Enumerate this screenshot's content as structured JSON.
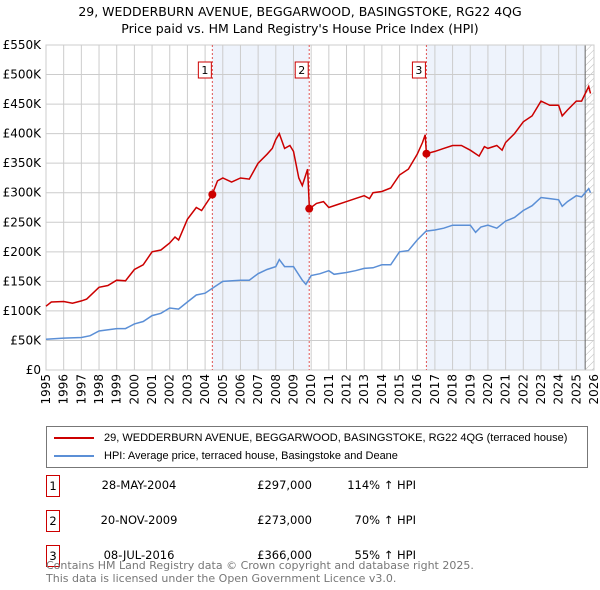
{
  "chart_data": {
    "type": "line",
    "title": "29, WEDDERBURN AVENUE, BEGGARWOOD, BASINGSTOKE, RG22 4QG",
    "subtitle": "Price paid vs. HM Land Registry's House Price Index (HPI)",
    "xlim": [
      1995,
      2026
    ],
    "ylim": [
      0,
      550000
    ],
    "y_ticks": [
      0,
      50000,
      100000,
      150000,
      200000,
      250000,
      300000,
      350000,
      400000,
      450000,
      500000,
      550000
    ],
    "y_tick_labels": [
      "£0",
      "£50K",
      "£100K",
      "£150K",
      "£200K",
      "£250K",
      "£300K",
      "£350K",
      "£400K",
      "£450K",
      "£500K",
      "£550K"
    ],
    "x_ticks": [
      1995,
      1996,
      1997,
      1998,
      1999,
      2000,
      2001,
      2002,
      2003,
      2004,
      2005,
      2006,
      2007,
      2008,
      2009,
      2010,
      2011,
      2012,
      2013,
      2014,
      2015,
      2016,
      2017,
      2018,
      2019,
      2020,
      2021,
      2022,
      2023,
      2024,
      2025,
      2026
    ],
    "x_tick_labels": [
      "1995",
      "1996",
      "1997",
      "1998",
      "1999",
      "2000",
      "2001",
      "2002",
      "2003",
      "2004",
      "2005",
      "2006",
      "2007",
      "2008",
      "2009",
      "2010",
      "2011",
      "2012",
      "2013",
      "2014",
      "2015",
      "2016",
      "2017",
      "2018",
      "2019",
      "2020",
      "2021",
      "2022",
      "2023",
      "2024",
      "2025",
      "2026"
    ],
    "grid": true,
    "series": [
      {
        "name": "29, WEDDERBURN AVENUE, BEGGARWOOD, BASINGSTOKE, RG22 4QG (terraced house)",
        "color": "#cc0000",
        "x": [
          1995,
          1995.3,
          1996,
          1996.5,
          1997,
          1997.3,
          1998,
          1998.5,
          1999,
          1999.5,
          2000,
          2000.5,
          2001,
          2001.5,
          2002,
          2002.3,
          2002.5,
          2003,
          2003.5,
          2003.8,
          2004.4,
          2004.7,
          2005,
          2005.5,
          2006,
          2006.5,
          2007,
          2007.5,
          2007.8,
          2008,
          2008.2,
          2008.5,
          2008.8,
          2009,
          2009.3,
          2009.5,
          2009.8,
          2009.9,
          2010.3,
          2010.7,
          2011,
          2011.5,
          2012,
          2012.5,
          2013,
          2013.3,
          2013.5,
          2014,
          2014.5,
          2015,
          2015.5,
          2016,
          2016.3,
          2016.45,
          2016.52,
          2017,
          2017.5,
          2018,
          2018.5,
          2019,
          2019.5,
          2019.8,
          2020,
          2020.5,
          2020.8,
          2021,
          2021.5,
          2022,
          2022.5,
          2023,
          2023.5,
          2024,
          2024.2,
          2024.5,
          2025,
          2025.3,
          2025.7,
          2025.8
        ],
        "y": [
          108,
          115,
          116,
          113,
          117,
          120,
          140,
          143,
          152,
          151,
          170,
          178,
          200,
          203,
          215,
          225,
          220,
          255,
          275,
          270,
          297,
          320,
          325,
          318,
          325,
          323,
          350,
          365,
          375,
          390,
          400,
          375,
          380,
          370,
          325,
          312,
          340,
          273,
          282,
          285,
          275,
          280,
          285,
          290,
          295,
          290,
          300,
          302,
          308,
          330,
          340,
          365,
          385,
          398,
          366,
          370,
          375,
          380,
          380,
          372,
          362,
          378,
          375,
          380,
          372,
          385,
          400,
          420,
          430,
          455,
          448,
          448,
          430,
          440,
          455,
          455,
          480,
          468
        ]
      },
      {
        "name": "HPI: Average price, terraced house, Basingstoke and Deane",
        "color": "#5b8fd6",
        "x": [
          1995,
          1996,
          1997,
          1997.5,
          1998,
          1999,
          1999.5,
          2000,
          2000.5,
          2001,
          2001.5,
          2002,
          2002.5,
          2003,
          2003.5,
          2004,
          2004.5,
          2005,
          2006,
          2006.5,
          2007,
          2007.5,
          2008,
          2008.2,
          2008.5,
          2009,
          2009.5,
          2009.7,
          2010,
          2010.5,
          2011,
          2011.3,
          2012,
          2012.5,
          2013,
          2013.5,
          2014,
          2014.5,
          2015,
          2015.5,
          2016,
          2016.5,
          2017,
          2017.5,
          2018,
          2019,
          2019.3,
          2019.6,
          2020,
          2020.5,
          2021,
          2021.5,
          2022,
          2022.5,
          2023,
          2023.5,
          2024,
          2024.2,
          2024.5,
          2025,
          2025.3,
          2025.7,
          2025.8
        ],
        "y": [
          52,
          54,
          55,
          58,
          66,
          70,
          70,
          78,
          82,
          92,
          96,
          105,
          103,
          115,
          127,
          130,
          140,
          150,
          152,
          152,
          163,
          170,
          175,
          187,
          175,
          175,
          152,
          145,
          160,
          163,
          168,
          162,
          165,
          168,
          172,
          173,
          178,
          178,
          200,
          202,
          220,
          235,
          237,
          240,
          245,
          245,
          233,
          242,
          245,
          240,
          252,
          258,
          270,
          278,
          292,
          290,
          288,
          277,
          285,
          295,
          293,
          307,
          300
        ]
      }
    ],
    "y_units": "thousands GBP",
    "sales": [
      {
        "id": "1",
        "x": 2004.41,
        "y": 297,
        "date": "28-MAY-2004",
        "price": "£297,000",
        "hpi": "114% ↑ HPI"
      },
      {
        "id": "2",
        "x": 2009.89,
        "y": 273,
        "date": "20-NOV-2009",
        "price": "£273,000",
        "hpi": "70% ↑ HPI"
      },
      {
        "id": "3",
        "x": 2016.52,
        "y": 366,
        "date": "08-JUL-2016",
        "price": "£366,000",
        "hpi": "55% ↑ HPI"
      }
    ],
    "forecast_start": 2025.5,
    "legend_position": "below"
  },
  "footer": {
    "line1": "Contains HM Land Registry data © Crown copyright and database right 2025.",
    "line2": "This data is licensed under the Open Government Licence v3.0."
  }
}
